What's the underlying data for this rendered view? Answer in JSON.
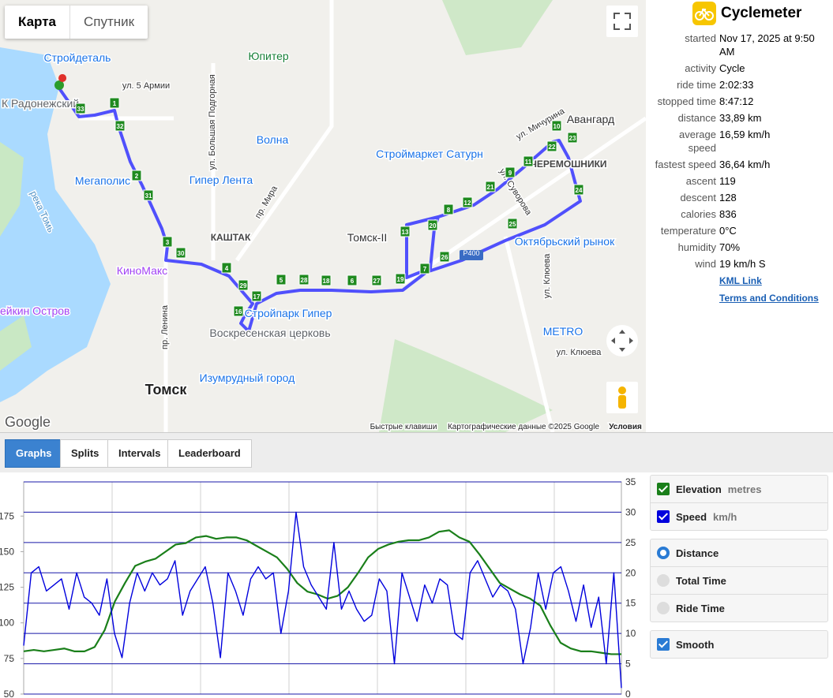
{
  "map": {
    "tabs": [
      "Карта",
      "Спутник"
    ],
    "labels": [
      "Стройдеталь",
      "ул. 5 Армии",
      "Юпитер",
      "К Радонежский",
      "Волна",
      "ул. Большая Подгорная",
      "Мегаполис",
      "Гипер Лента",
      "пр. Мира",
      "Строймаркет Сатурн",
      "ул. Мичурина",
      "Авангард",
      "ЧЕРЕМОШНИКИ",
      "ул. Суворова",
      "КАШТАК",
      "Томск-II",
      "Октябрьский рынок",
      "река Томь",
      "КиноМакс",
      "Стройпарк Гипер",
      "Воскресенская церковь",
      "Изумрудный город",
      "Томск",
      "пр. Ленина",
      "ейкин Остров",
      "METRO",
      "ул. Клюева",
      "ул. Клюева",
      "Р400",
      "Google",
      "Быстрые клавиши",
      "Картографические данные ©2025 Google",
      "Условия"
    ],
    "markers": [
      "1",
      "32",
      "2",
      "31",
      "3",
      "30",
      "4",
      "29",
      "17",
      "16",
      "5",
      "28",
      "18",
      "6",
      "27",
      "19",
      "7",
      "26",
      "20",
      "13",
      "8",
      "12",
      "21",
      "9",
      "11",
      "22",
      "10",
      "23",
      "24",
      "25",
      "33"
    ]
  },
  "info": {
    "title": "Cyclemeter",
    "rows": [
      [
        "started",
        "Nov 17, 2025 at 9:50 AM"
      ],
      [
        "activity",
        "Cycle"
      ],
      [
        "ride time",
        "2:02:33"
      ],
      [
        "stopped time",
        "8:47:12"
      ],
      [
        "distance",
        "33,89 km"
      ],
      [
        "average speed",
        "16,59 km/h"
      ],
      [
        "fastest speed",
        "36,64 km/h"
      ],
      [
        "ascent",
        "119"
      ],
      [
        "descent",
        "128"
      ],
      [
        "calories",
        "836"
      ],
      [
        "temperature",
        "0°C"
      ],
      [
        "humidity",
        "70%"
      ],
      [
        "wind",
        "19 km/h S"
      ]
    ],
    "links": [
      "KML Link",
      "Terms and Conditions"
    ]
  },
  "tabs": {
    "items": [
      "Graphs",
      "Splits",
      "Intervals",
      "Leaderboard"
    ],
    "active": 0
  },
  "chart_data": {
    "type": "line",
    "series": [
      {
        "name": "Elevation",
        "unit": "metres",
        "color": "#1a7f1a",
        "values": [
          80,
          81,
          80,
          81,
          82,
          80,
          80,
          83,
          95,
          115,
          128,
          140,
          143,
          145,
          150,
          155,
          156,
          160,
          161,
          159,
          160,
          160,
          158,
          154,
          150,
          146,
          138,
          128,
          122,
          120,
          117,
          119,
          125,
          135,
          146,
          152,
          155,
          157,
          158,
          158,
          160,
          164,
          165,
          160,
          157,
          148,
          138,
          128,
          124,
          120,
          117,
          112,
          98,
          86,
          82,
          80,
          80,
          79,
          78,
          78
        ]
      },
      {
        "name": "Speed",
        "unit": "km/h",
        "color": "#0000dd",
        "axis": "y2",
        "values": [
          8,
          20,
          21,
          17,
          18,
          19,
          14,
          20,
          16,
          15,
          13,
          19,
          10,
          6,
          15,
          20,
          17,
          20,
          18,
          19,
          22,
          13,
          17,
          19,
          21,
          15,
          6,
          20,
          17,
          13,
          19,
          21,
          19,
          20,
          10,
          17,
          30,
          21,
          18,
          16,
          14,
          25,
          14,
          17,
          14,
          12,
          13,
          19,
          17,
          5,
          20,
          16,
          12,
          18,
          15,
          19,
          18,
          10,
          9,
          20,
          22,
          19,
          16,
          18,
          17,
          14,
          5,
          11,
          20,
          14,
          20,
          21,
          17,
          12,
          18,
          11,
          16,
          5,
          20,
          1
        ]
      }
    ],
    "ylim": [
      50,
      199
    ],
    "yticks": [
      50,
      75,
      100,
      125,
      150,
      175
    ],
    "y2lim": [
      0,
      35
    ],
    "y2ticks": [
      0,
      5,
      10,
      15,
      20,
      25,
      30,
      35
    ],
    "grid": true
  },
  "controls": {
    "x_axis": {
      "options": [
        "Distance",
        "Total Time",
        "Ride Time"
      ],
      "selected": 0
    },
    "smooth": "Smooth"
  }
}
